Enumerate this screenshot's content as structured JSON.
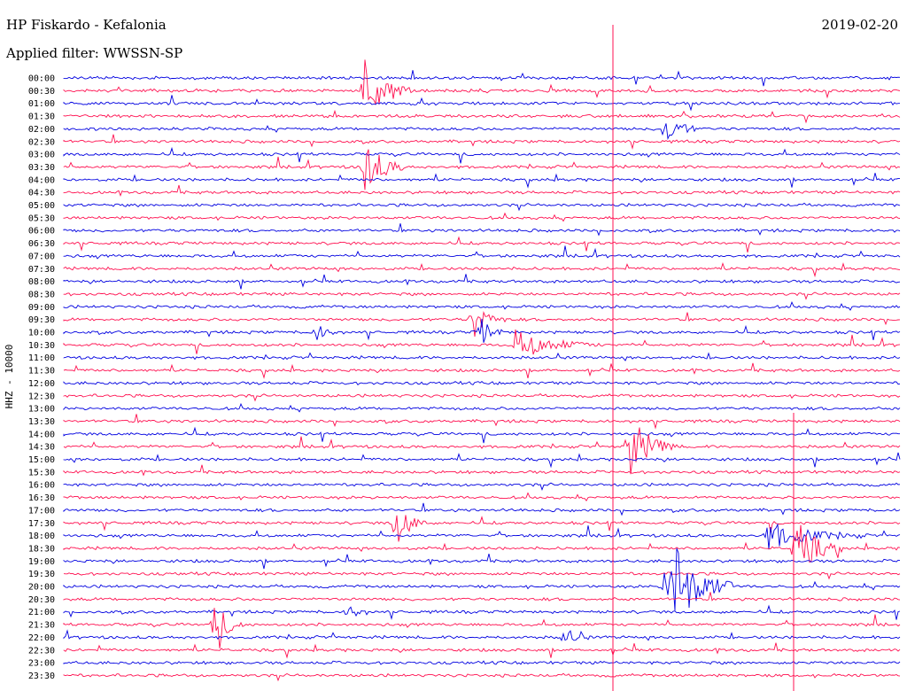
{
  "header": {
    "station": "HP Fiskardo - Kefalonia",
    "filter": "Applied filter: WWSSN-SP",
    "date": "2019-02-20"
  },
  "chart_data": {
    "type": "line",
    "title": "HP Fiskardo - Kefalonia",
    "subtitle": "Applied filter: WWSSN-SP",
    "ylabel": "HHZ - 10000",
    "row_labels": [
      "00:00",
      "00:30",
      "01:00",
      "01:30",
      "02:00",
      "02:30",
      "03:00",
      "03:30",
      "04:00",
      "04:30",
      "05:00",
      "05:30",
      "06:00",
      "06:30",
      "07:00",
      "07:30",
      "08:00",
      "08:30",
      "09:00",
      "09:30",
      "10:00",
      "10:30",
      "11:00",
      "11:30",
      "12:00",
      "12:30",
      "13:00",
      "13:30",
      "14:00",
      "14:30",
      "15:00",
      "15:30",
      "16:00",
      "16:30",
      "17:00",
      "17:30",
      "18:00",
      "18:30",
      "19:00",
      "19:30",
      "20:00",
      "20:30",
      "21:00",
      "21:30",
      "22:00",
      "22:30",
      "23:00",
      "23:30"
    ],
    "colors": {
      "even": "#0000e0",
      "odd": "#ff1050"
    },
    "events": [
      {
        "row": 1,
        "x": 0.36,
        "amp": 40,
        "len": 0.06
      },
      {
        "row": 7,
        "x": 0.36,
        "amp": 35,
        "len": 0.05
      },
      {
        "row": 4,
        "x": 0.72,
        "amp": 22,
        "len": 0.04
      },
      {
        "row": 19,
        "x": 0.49,
        "amp": 22,
        "len": 0.04
      },
      {
        "row": 20,
        "x": 0.5,
        "amp": 14,
        "len": 0.03
      },
      {
        "row": 21,
        "x": 0.54,
        "amp": 18,
        "len": 0.1
      },
      {
        "row": 20,
        "x": 0.3,
        "amp": 14,
        "len": 0.03
      },
      {
        "row": 29,
        "x": 0.675,
        "amp": 38,
        "len": 0.06
      },
      {
        "row": 35,
        "x": 0.395,
        "amp": 30,
        "len": 0.04
      },
      {
        "row": 40,
        "x": 0.72,
        "amp": 70,
        "len": 0.08
      },
      {
        "row": 37,
        "x": 0.875,
        "amp": 34,
        "len": 0.06
      },
      {
        "row": 36,
        "x": 0.84,
        "amp": 16,
        "len": 0.12
      },
      {
        "row": 43,
        "x": 0.18,
        "amp": 28,
        "len": 0.04
      },
      {
        "row": 44,
        "x": 0.6,
        "amp": 14,
        "len": 0.03
      },
      {
        "row": 42,
        "x": 0.34,
        "amp": 10,
        "len": 0.03
      }
    ]
  }
}
